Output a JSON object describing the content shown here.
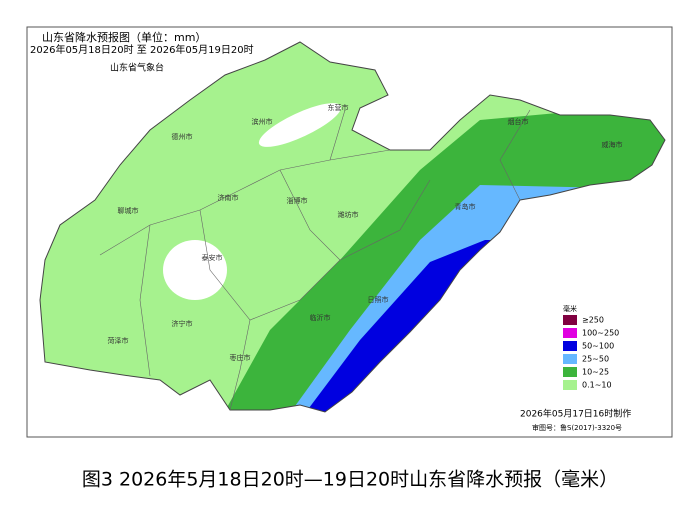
{
  "map": {
    "title": "山东省降水预报图（单位：mm）",
    "period": "2026年05月18日20时 至 2026年05月19日20时",
    "issuer": "山东省气象台",
    "cities": [
      "德州市",
      "滨州市",
      "东营市",
      "烟台市",
      "威海市",
      "聊城市",
      "济南市",
      "淄博市",
      "潍坊市",
      "青岛市",
      "泰安市",
      "日照市",
      "临沂市",
      "济宁市",
      "菏泽市",
      "枣庄市"
    ],
    "legend": {
      "title": "毫米",
      "items": [
        {
          "label": "≥250",
          "color": "#800040"
        },
        {
          "label": "100~250",
          "color": "#e000e0"
        },
        {
          "label": "50~100",
          "color": "#0000e0"
        },
        {
          "label": "25~50",
          "color": "#66b8ff"
        },
        {
          "label": "10~25",
          "color": "#3cb43c"
        },
        {
          "label": "0.1~10",
          "color": "#a6f28e"
        }
      ]
    },
    "made": "2026年05月17日16时制作",
    "approval": "审图号：鲁S(2017)-3320号",
    "caption": "图3 2026年5月18日20时—19日20时山东省降水预报（毫米）"
  }
}
